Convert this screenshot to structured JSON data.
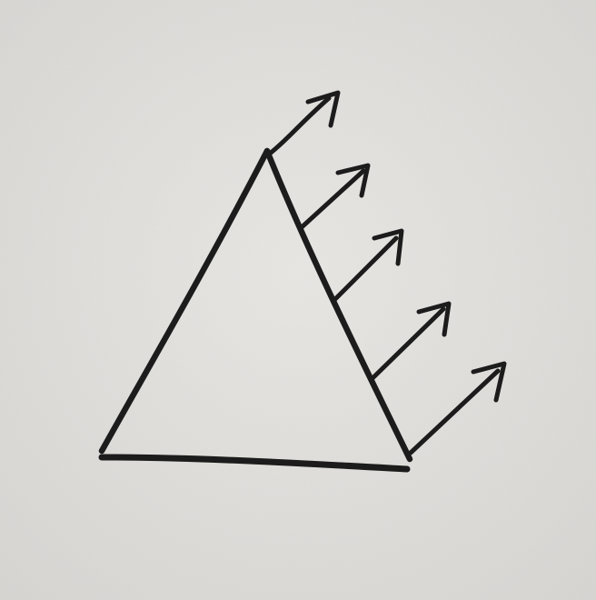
{
  "drawing": {
    "paper_color": "#e3e2df",
    "ink_color": "#1c1c1c",
    "shapes": [
      "triangle",
      "arrow",
      "arrow",
      "arrow",
      "arrow",
      "arrow"
    ],
    "arrow_count": 5
  }
}
